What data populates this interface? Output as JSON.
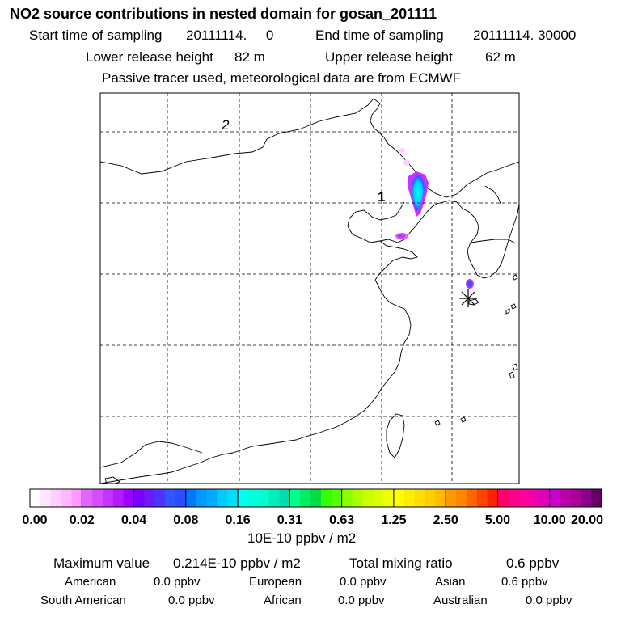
{
  "header": {
    "title": "NO2 source contributions in nested domain for gosan_201111",
    "start_label": "Start time of sampling",
    "start_value": "20111114.     0",
    "end_label": "End time of sampling",
    "end_value": "20111114. 30000",
    "lower_label": "Lower release height",
    "lower_value": "82 m",
    "upper_label": "Upper release height",
    "upper_value": "62 m",
    "note": "Passive tracer used, meteorological data are from ECMWF"
  },
  "map": {
    "grid_labels": [
      "2",
      "1"
    ],
    "receptor_marker": "asterisk-marker"
  },
  "colorbar": {
    "tick_labels": [
      "0.00",
      "0.02",
      "0.04",
      "0.08",
      "0.16",
      "0.31",
      "0.63",
      "1.25",
      "2.50",
      "5.00",
      "10.00",
      "20.00"
    ],
    "unit": "10E-10 ppbv / m2",
    "colors": [
      "#ffffff",
      "#ffe8ff",
      "#ffd0ff",
      "#ffb8ff",
      "#ff99ff",
      "#e066ff",
      "#d54dff",
      "#c433ff",
      "#b31aff",
      "#a000ff",
      "#7a00ff",
      "#6a1aff",
      "#4d33ff",
      "#3355ff",
      "#2a4dff",
      "#0077ff",
      "#0099ff",
      "#00aaff",
      "#00ccff",
      "#00ddff",
      "#00ffee",
      "#00ffdd",
      "#00ffcc",
      "#00eebb",
      "#00ddaa",
      "#00ff88",
      "#00ee66",
      "#00dd44",
      "#33ff00",
      "#55ff00",
      "#88ff00",
      "#aaff00",
      "#ccff00",
      "#ddff00",
      "#eeff00",
      "#ffff00",
      "#ffee00",
      "#ffdd00",
      "#ffcc00",
      "#ffbb00",
      "#ff9900",
      "#ff8800",
      "#ff6600",
      "#ff4400",
      "#ff2200",
      "#ff0066",
      "#ff0088",
      "#ff0099",
      "#ee00aa",
      "#dd00bb",
      "#cc00cc",
      "#bb00aa",
      "#aa0099",
      "#880088",
      "#660066"
    ]
  },
  "stats": {
    "max_label": "Maximum value",
    "max_value": "0.214E-10 ppbv / m2",
    "total_label": "Total mixing ratio",
    "total_value": "0.6 ppbv",
    "regions": [
      {
        "name": "American",
        "value": "0.0 ppbv"
      },
      {
        "name": "European",
        "value": "0.0 ppbv"
      },
      {
        "name": "Asian",
        "value": "0.6 ppbv"
      },
      {
        "name": "South American",
        "value": "0.0 ppbv"
      },
      {
        "name": "African",
        "value": "0.0 ppbv"
      },
      {
        "name": "Australian",
        "value": "0.0 ppbv"
      }
    ]
  }
}
